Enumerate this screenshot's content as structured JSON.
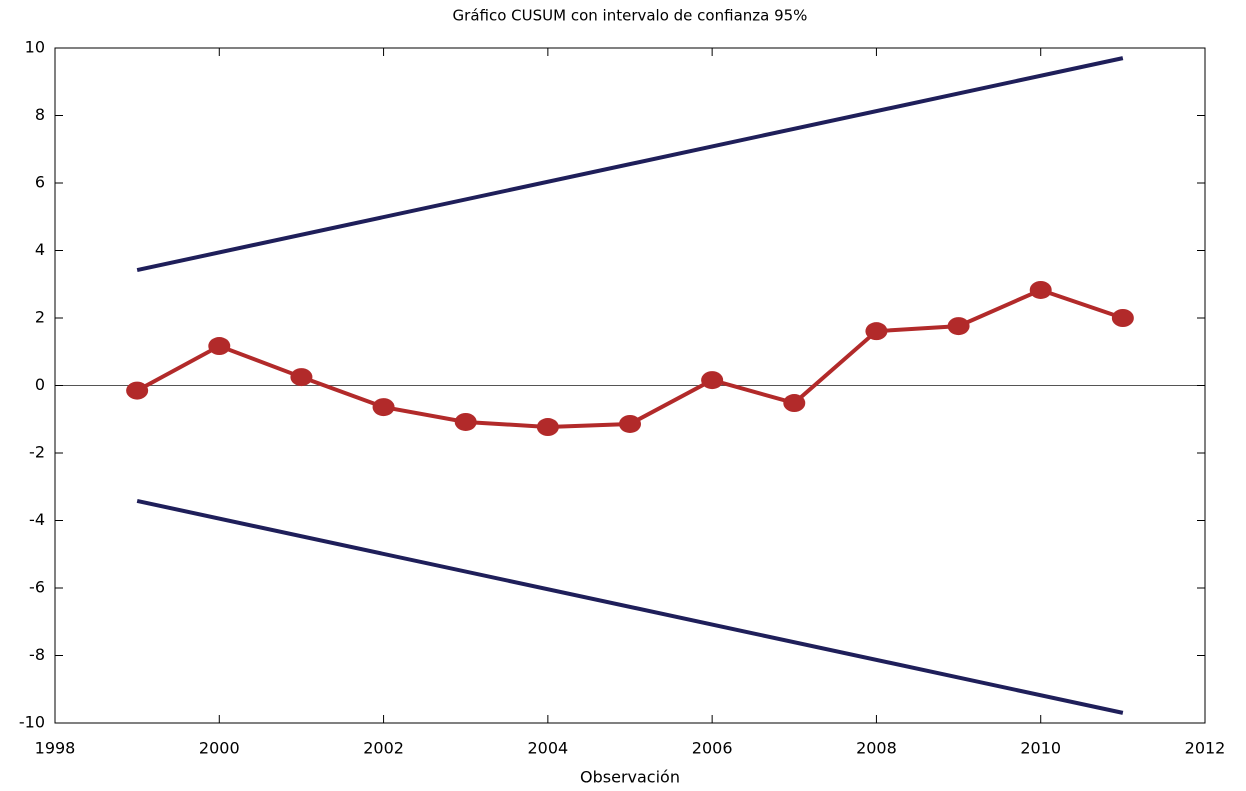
{
  "chart_data": {
    "type": "line",
    "title": "Gráfico CUSUM con intervalo de confianza 95%",
    "x_label": "Observación",
    "xlim": [
      1998,
      2012
    ],
    "xticks": [
      1998,
      2000,
      2002,
      2004,
      2006,
      2008,
      2010,
      2012
    ],
    "ylim": [
      -10,
      10
    ],
    "yticks": [
      -10,
      -8,
      -6,
      -4,
      -2,
      0,
      2,
      4,
      6,
      8,
      10
    ],
    "series": [
      {
        "color": "#b22a2a",
        "markers": true,
        "x": [
          1999,
          2000,
          2001,
          2002,
          2003,
          2004,
          2005,
          2006,
          2007,
          2008,
          2009,
          2010,
          2011
        ],
        "values": [
          -0.15,
          1.17,
          0.25,
          -0.64,
          -1.08,
          -1.23,
          -1.14,
          0.16,
          -0.52,
          1.61,
          1.76,
          2.83,
          2.0
        ]
      },
      {
        "color": "#1f1f5a",
        "markers": false,
        "x": [
          1999,
          2011
        ],
        "values": [
          3.42,
          9.7
        ]
      },
      {
        "color": "#1f1f5a",
        "markers": false,
        "x": [
          1999,
          2011
        ],
        "values": [
          -3.42,
          -9.7
        ]
      }
    ]
  }
}
